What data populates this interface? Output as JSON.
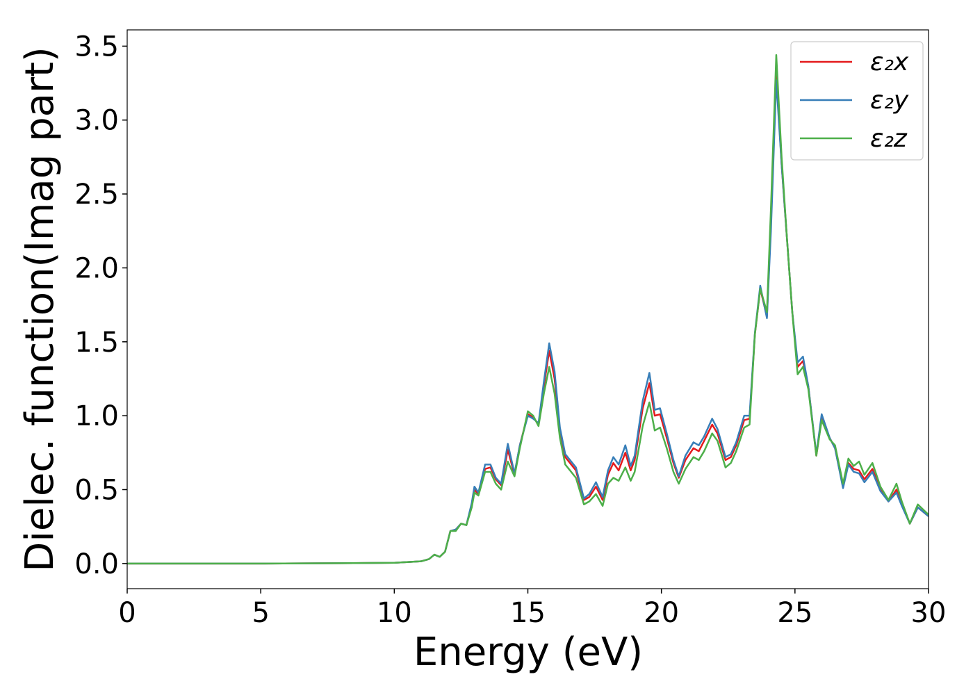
{
  "chart_data": {
    "type": "line",
    "xlabel": "Energy (eV)",
    "ylabel": "Dielec. function(Imag part)",
    "x": [
      0,
      5,
      8,
      10,
      11,
      11.3,
      11.5,
      11.7,
      11.9,
      12.1,
      12.3,
      12.5,
      12.7,
      12.9,
      13.0,
      13.15,
      13.4,
      13.6,
      13.8,
      14.0,
      14.25,
      14.5,
      14.7,
      15.0,
      15.2,
      15.4,
      15.6,
      15.8,
      16.0,
      16.2,
      16.4,
      16.8,
      17.1,
      17.3,
      17.55,
      17.8,
      18.0,
      18.2,
      18.4,
      18.65,
      18.85,
      19.0,
      19.3,
      19.55,
      19.75,
      19.95,
      20.2,
      20.45,
      20.65,
      20.9,
      21.2,
      21.4,
      21.6,
      21.9,
      22.1,
      22.4,
      22.6,
      22.8,
      23.1,
      23.3,
      23.5,
      23.7,
      23.95,
      24.1,
      24.3,
      24.5,
      24.7,
      24.9,
      25.1,
      25.3,
      25.5,
      25.8,
      26.0,
      26.3,
      26.5,
      26.8,
      27.0,
      27.2,
      27.4,
      27.6,
      27.9,
      28.2,
      28.5,
      28.8,
      29.0,
      29.3,
      29.6,
      30.0
    ],
    "series": [
      {
        "name": "ε₂x",
        "color": "#e41a1c",
        "values": [
          0,
          0,
          0.002,
          0.005,
          0.015,
          0.03,
          0.06,
          0.045,
          0.08,
          0.22,
          0.23,
          0.27,
          0.26,
          0.4,
          0.5,
          0.47,
          0.64,
          0.65,
          0.57,
          0.53,
          0.77,
          0.6,
          0.8,
          1.01,
          0.99,
          0.94,
          1.2,
          1.44,
          1.25,
          0.9,
          0.72,
          0.63,
          0.43,
          0.45,
          0.52,
          0.43,
          0.6,
          0.68,
          0.63,
          0.75,
          0.63,
          0.7,
          1.05,
          1.22,
          1.0,
          1.01,
          0.85,
          0.68,
          0.58,
          0.7,
          0.78,
          0.76,
          0.83,
          0.94,
          0.88,
          0.7,
          0.72,
          0.8,
          0.97,
          0.98,
          1.55,
          1.86,
          1.67,
          2.3,
          3.33,
          2.7,
          2.2,
          1.7,
          1.33,
          1.37,
          1.2,
          0.73,
          0.98,
          0.85,
          0.78,
          0.52,
          0.68,
          0.64,
          0.63,
          0.57,
          0.64,
          0.5,
          0.42,
          0.5,
          0.4,
          0.27,
          0.38,
          0.32
        ]
      },
      {
        "name": "ε₂y",
        "color": "#377eb8",
        "values": [
          0,
          0,
          0.002,
          0.005,
          0.015,
          0.03,
          0.06,
          0.045,
          0.08,
          0.22,
          0.23,
          0.27,
          0.26,
          0.41,
          0.52,
          0.48,
          0.67,
          0.67,
          0.58,
          0.54,
          0.81,
          0.61,
          0.8,
          1.0,
          0.98,
          0.95,
          1.23,
          1.49,
          1.3,
          0.92,
          0.74,
          0.65,
          0.44,
          0.47,
          0.55,
          0.45,
          0.63,
          0.72,
          0.67,
          0.8,
          0.66,
          0.73,
          1.1,
          1.29,
          1.04,
          1.05,
          0.88,
          0.7,
          0.59,
          0.73,
          0.82,
          0.8,
          0.86,
          0.98,
          0.91,
          0.72,
          0.74,
          0.82,
          1.0,
          1.0,
          1.56,
          1.88,
          1.66,
          2.25,
          3.27,
          2.7,
          2.2,
          1.7,
          1.36,
          1.4,
          1.2,
          0.74,
          1.01,
          0.85,
          0.78,
          0.51,
          0.67,
          0.62,
          0.61,
          0.55,
          0.62,
          0.49,
          0.42,
          0.48,
          0.39,
          0.27,
          0.38,
          0.32
        ]
      },
      {
        "name": "ε₂z",
        "color": "#4daf4a",
        "values": [
          0,
          0,
          0.002,
          0.005,
          0.015,
          0.03,
          0.06,
          0.045,
          0.08,
          0.22,
          0.22,
          0.27,
          0.26,
          0.38,
          0.48,
          0.46,
          0.62,
          0.62,
          0.54,
          0.5,
          0.69,
          0.59,
          0.78,
          1.03,
          1.0,
          0.93,
          1.15,
          1.33,
          1.15,
          0.85,
          0.67,
          0.58,
          0.4,
          0.42,
          0.47,
          0.39,
          0.54,
          0.58,
          0.56,
          0.65,
          0.56,
          0.62,
          0.93,
          1.09,
          0.9,
          0.92,
          0.78,
          0.62,
          0.54,
          0.64,
          0.72,
          0.7,
          0.76,
          0.88,
          0.83,
          0.65,
          0.68,
          0.76,
          0.92,
          0.94,
          1.55,
          1.86,
          1.7,
          2.4,
          3.44,
          2.75,
          2.2,
          1.7,
          1.28,
          1.33,
          1.18,
          0.73,
          0.97,
          0.84,
          0.8,
          0.54,
          0.71,
          0.66,
          0.69,
          0.6,
          0.68,
          0.52,
          0.43,
          0.54,
          0.42,
          0.27,
          0.4,
          0.33
        ]
      }
    ],
    "xlim": [
      0,
      30
    ],
    "xticks": [
      0,
      5,
      10,
      15,
      20,
      25,
      30
    ],
    "ylim": [
      -0.17,
      3.61
    ],
    "yticks": [
      {
        "value": 0,
        "label": "0.0"
      },
      0.5,
      {
        "value": 1,
        "label": "1.0"
      },
      1.5,
      {
        "value": 2,
        "label": "2.0"
      },
      2.5,
      {
        "value": 3,
        "label": "3.0"
      },
      3.5
    ],
    "grid": false,
    "legend": "upper right"
  }
}
